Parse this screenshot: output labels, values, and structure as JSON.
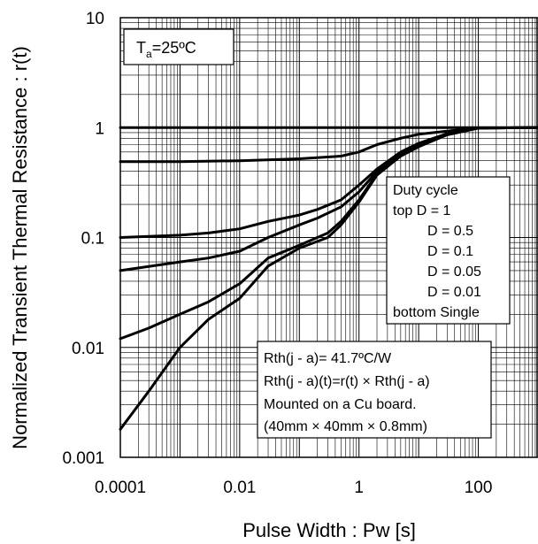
{
  "chart_data": {
    "type": "line",
    "xscale": "log",
    "yscale": "log",
    "xlim": [
      0.0001,
      1000
    ],
    "ylim": [
      0.001,
      10
    ],
    "xticks": [
      "0.0001",
      "0.01",
      "1",
      "100"
    ],
    "yticks": [
      "10",
      "1",
      "0.1",
      "0.01",
      "0.001"
    ],
    "xlabel": "Pulse Width : Pw [s]",
    "ylabel": "Normalized Transient Thermal Resistance : r(t)",
    "grid": true,
    "series": [
      {
        "name": "D = 1",
        "x": [
          0.0001,
          1000
        ],
        "y": [
          1,
          1
        ]
      },
      {
        "name": "D = 0.5",
        "x": [
          0.0001,
          0.001,
          0.01,
          0.1,
          0.5,
          1,
          2,
          5,
          10,
          30,
          100,
          1000
        ],
        "y": [
          0.49,
          0.49,
          0.5,
          0.52,
          0.55,
          0.6,
          0.7,
          0.8,
          0.87,
          0.93,
          0.99,
          1
        ]
      },
      {
        "name": "D = 0.1",
        "x": [
          0.0001,
          0.001,
          0.003,
          0.01,
          0.03,
          0.1,
          0.2,
          0.5,
          1,
          2,
          5,
          10,
          30,
          100,
          1000
        ],
        "y": [
          0.1,
          0.105,
          0.11,
          0.12,
          0.14,
          0.16,
          0.18,
          0.22,
          0.3,
          0.42,
          0.6,
          0.72,
          0.88,
          0.99,
          1
        ]
      },
      {
        "name": "D = 0.05",
        "x": [
          0.0001,
          0.001,
          0.003,
          0.01,
          0.03,
          0.1,
          0.2,
          0.5,
          1,
          2,
          5,
          10,
          30,
          100,
          1000
        ],
        "y": [
          0.05,
          0.06,
          0.065,
          0.075,
          0.1,
          0.13,
          0.15,
          0.19,
          0.26,
          0.4,
          0.57,
          0.7,
          0.87,
          0.99,
          1
        ]
      },
      {
        "name": "D = 0.01",
        "x": [
          0.0001,
          0.0003,
          0.001,
          0.003,
          0.01,
          0.03,
          0.1,
          0.3,
          0.5,
          1,
          2,
          5,
          10,
          30,
          100,
          1000
        ],
        "y": [
          0.012,
          0.015,
          0.02,
          0.026,
          0.038,
          0.065,
          0.085,
          0.11,
          0.14,
          0.22,
          0.38,
          0.56,
          0.68,
          0.86,
          0.99,
          1
        ]
      },
      {
        "name": "Single",
        "x": [
          0.0001,
          0.0003,
          0.001,
          0.003,
          0.01,
          0.03,
          0.1,
          0.3,
          0.5,
          1,
          2,
          5,
          10,
          30,
          100,
          1000
        ],
        "y": [
          0.0018,
          0.004,
          0.01,
          0.018,
          0.028,
          0.055,
          0.08,
          0.1,
          0.13,
          0.21,
          0.37,
          0.55,
          0.67,
          0.86,
          0.99,
          1
        ]
      }
    ],
    "legend": {
      "title": "Duty cycle",
      "position": "right",
      "lines": [
        "top  D = 1",
        "D = 0.5",
        "D = 0.1",
        "D = 0.05",
        "D = 0.01",
        "bottom Single"
      ]
    },
    "annotations": {
      "ambient_prefix": "T",
      "ambient_sub": "a",
      "ambient_suffix": "=25ºC",
      "notes": [
        "Rth(j - a)= 41.7ºC/W",
        "Rth(j - a)(t)=r(t) × Rth(j - a)",
        "Mounted on a Cu board.",
        "(40mm × 40mm × 0.8mm)"
      ]
    }
  }
}
